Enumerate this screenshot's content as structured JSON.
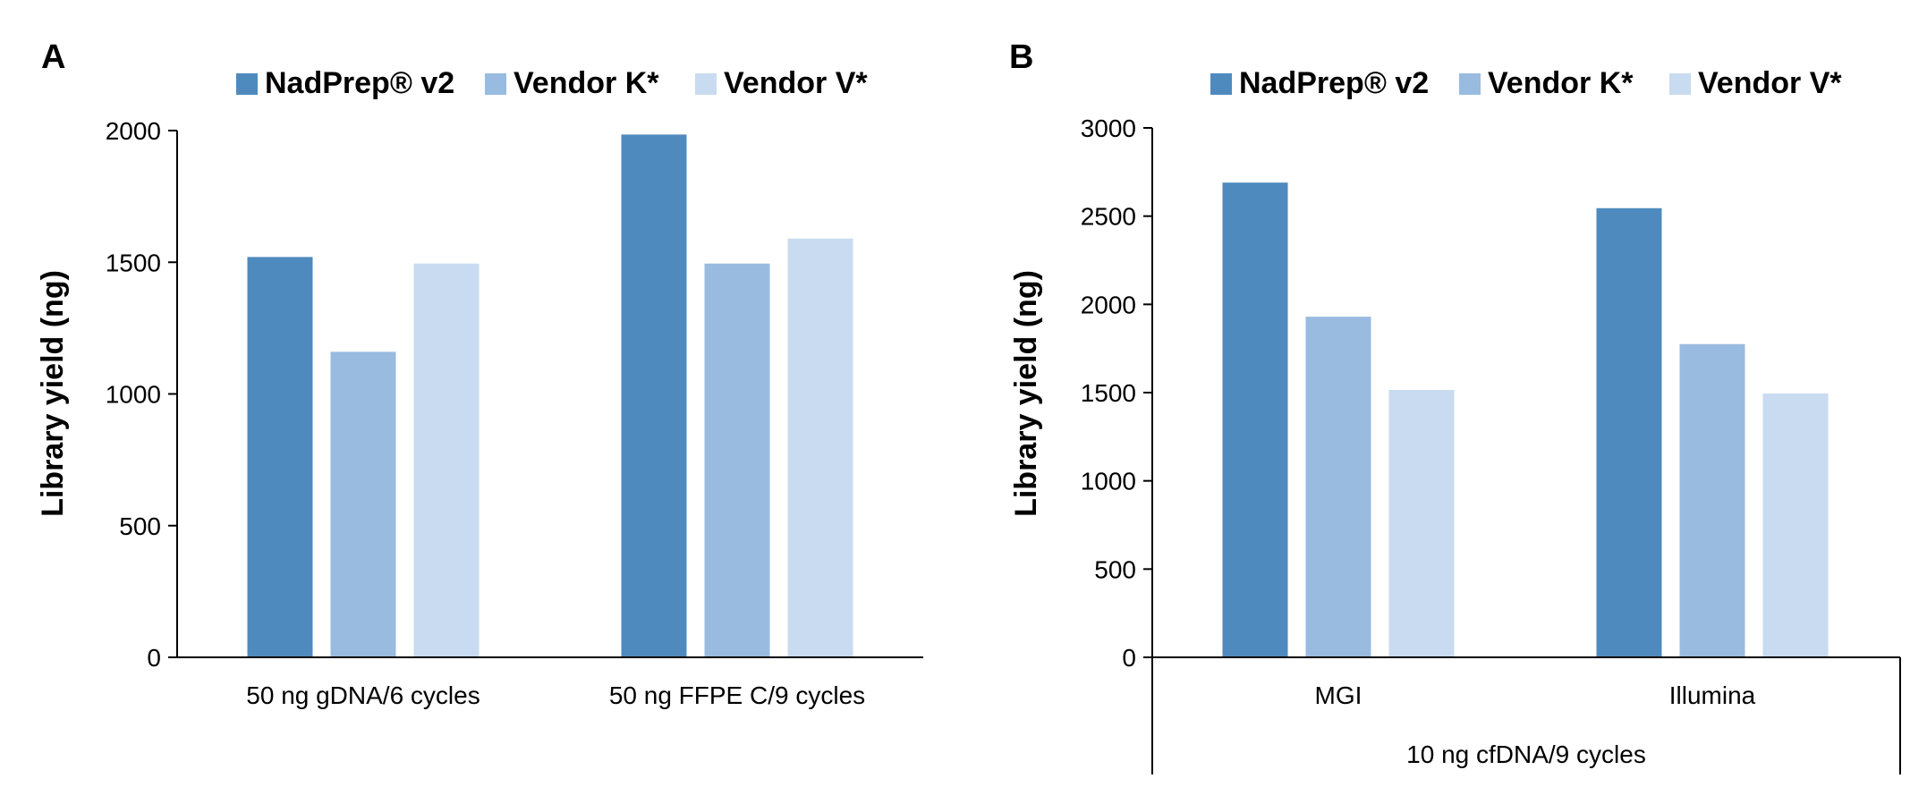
{
  "chart_data": [
    {
      "type": "bar",
      "panel": "A",
      "ylabel": "Library yield (ng)",
      "xlabel": "",
      "ylim": [
        0,
        2000
      ],
      "yticks": [
        "0",
        "500",
        "1000",
        "1500",
        "2000"
      ],
      "categories": [
        "50 ng gDNA/6 cycles",
        "50 ng FFPE C/9 cycles"
      ],
      "group_label": "",
      "legend": [
        "NadPrep® v2",
        "Vendor K*",
        "Vendor V*"
      ],
      "legend_position": "top",
      "series": [
        {
          "name": "NadPrep® v2",
          "color": "#4f8abe",
          "values": [
            1520,
            1985
          ]
        },
        {
          "name": "Vendor K*",
          "color": "#99bbe0",
          "values": [
            1160,
            1495
          ]
        },
        {
          "name": "Vendor V*",
          "color": "#c9dbf0",
          "values": [
            1495,
            1590
          ]
        }
      ]
    },
    {
      "type": "bar",
      "panel": "B",
      "ylabel": "Library yield (ng)",
      "xlabel": "",
      "ylim": [
        0,
        3000
      ],
      "yticks": [
        "0",
        "500",
        "1000",
        "1500",
        "2000",
        "2500",
        "3000"
      ],
      "categories": [
        "MGI",
        "Illumina"
      ],
      "group_label": "10 ng cfDNA/9 cycles",
      "legend": [
        "NadPrep® v2",
        "Vendor K*",
        "Vendor V*"
      ],
      "legend_position": "top",
      "series": [
        {
          "name": "NadPrep® v2",
          "color": "#4f8abe",
          "values": [
            2690,
            2545
          ]
        },
        {
          "name": "Vendor K*",
          "color": "#99bbe0",
          "values": [
            1930,
            1775
          ]
        },
        {
          "name": "Vendor V*",
          "color": "#c9dbf0",
          "values": [
            1515,
            1495
          ]
        }
      ]
    }
  ]
}
